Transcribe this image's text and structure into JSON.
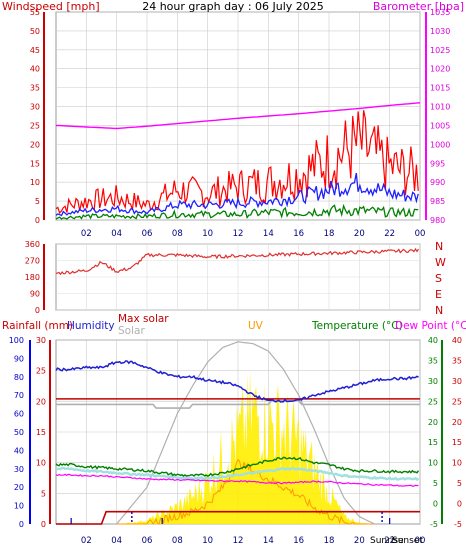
{
  "chart_data": [
    {
      "type": "line",
      "title": "24 hour graph day : 06 July 2025",
      "ylabel": "Windspeed [mph]",
      "y2label": "Barometer [hpa]",
      "x_ticks": [
        "02",
        "04",
        "06",
        "08",
        "10",
        "12",
        "14",
        "16",
        "18",
        "20",
        "22",
        "00"
      ],
      "ylim": [
        0,
        55
      ],
      "y_ticks": [
        0,
        5,
        10,
        15,
        20,
        25,
        30,
        35,
        40,
        45,
        50,
        55
      ],
      "y2lim": [
        980,
        1035
      ],
      "y2_ticks": [
        980,
        985,
        990,
        995,
        1000,
        1005,
        1010,
        1015,
        1020,
        1025,
        1030,
        1035
      ],
      "colors": {
        "gust": "#ff0000",
        "average": "#2020ff",
        "lull": "#008000",
        "barometer": "#ff00ff"
      },
      "x": [
        0,
        2,
        4,
        6,
        8,
        10,
        12,
        14,
        16,
        18,
        20,
        22,
        24
      ],
      "series": [
        {
          "key": "barometer",
          "axis": "right",
          "values": [
            1005,
            1004.6,
            1004.2,
            1004.8,
            1005.5,
            1006.2,
            1006.9,
            1007.5,
            1008.1,
            1008.8,
            1009.5,
            1010.3,
            1011
          ]
        },
        {
          "key": "gust",
          "axis": "left",
          "values": [
            3,
            5,
            6,
            4,
            8,
            7,
            9,
            10,
            12,
            16,
            20,
            14,
            12
          ]
        },
        {
          "key": "average",
          "axis": "left",
          "values": [
            1.5,
            2.5,
            3,
            2,
            4,
            4,
            4.5,
            5,
            6,
            8,
            10,
            7,
            6
          ]
        },
        {
          "key": "lull",
          "axis": "left",
          "values": [
            0.5,
            1,
            1,
            1,
            1.5,
            1.5,
            1.5,
            2,
            2,
            2.5,
            2.5,
            2,
            2
          ]
        }
      ]
    },
    {
      "type": "line",
      "x_ticks": [
        "02",
        "04",
        "06",
        "08",
        "10",
        "12",
        "14",
        "16",
        "18",
        "20",
        "22",
        "00"
      ],
      "ylim": [
        0,
        360
      ],
      "y_ticks": [
        0,
        90,
        180,
        270,
        360
      ],
      "y_tick_labels": [
        "0",
        "90",
        "180",
        "270",
        "360"
      ],
      "right_labels": [
        "N",
        "W",
        "S",
        "E",
        "N"
      ],
      "colors": {
        "direction": "#e03030"
      },
      "x": [
        0,
        2,
        3,
        4,
        5,
        6,
        8,
        10,
        12,
        14,
        16,
        18,
        20,
        22,
        24
      ],
      "series": [
        {
          "key": "direction",
          "values": [
            200,
            215,
            260,
            210,
            230,
            300,
            300,
            290,
            295,
            300,
            305,
            310,
            315,
            320,
            325
          ]
        }
      ]
    },
    {
      "type": "area",
      "labels": {
        "rainfall": "Rainfall (mm)",
        "humidity": "Humidity",
        "max_solar": "Max solar",
        "solar": "Solar",
        "uv": "UV",
        "temperature": "Temperature (°C)",
        "dew_point": "Dew Point (°C)",
        "sunrise": "Sunrise",
        "sunset": "Sunset"
      },
      "x_ticks": [
        "02",
        "04",
        "06",
        "08",
        "10",
        "12",
        "14",
        "16",
        "18",
        "20",
        "22",
        "00"
      ],
      "rain_ylim": [
        0,
        30
      ],
      "rain_ticks": [
        0,
        5,
        10,
        15,
        20,
        25,
        30
      ],
      "hum_ylim": [
        0,
        100
      ],
      "hum_ticks": [
        0,
        10,
        20,
        30,
        40,
        50,
        60,
        70,
        80,
        90,
        100
      ],
      "temp_ylim": [
        -5,
        40
      ],
      "temp_ticks": [
        -5,
        0,
        5,
        10,
        15,
        20,
        25,
        30,
        35,
        40
      ],
      "colors": {
        "rainfall": "#0000ff",
        "humidity": "#2020d0",
        "max_solar": "#c00000",
        "solar": "#b0b0b0",
        "uv": "#ff9900",
        "temperature": "#008000",
        "dew_point": "#ff00ff",
        "solar_fill": "#ffee00",
        "wet_bulb": "#a0e0e0"
      },
      "x": [
        0,
        1,
        2,
        3,
        4,
        5,
        6,
        7,
        8,
        9,
        10,
        11,
        12,
        13,
        14,
        15,
        16,
        17,
        18,
        19,
        20,
        21,
        22,
        23,
        24
      ],
      "series": [
        {
          "key": "humidity",
          "axis": "humidity",
          "values": [
            84,
            84,
            85,
            85,
            88,
            88,
            85,
            82,
            80,
            80,
            78,
            77,
            75,
            70,
            67,
            67,
            67,
            70,
            72,
            74,
            76,
            78,
            79,
            79,
            80
          ]
        },
        {
          "key": "temperature",
          "axis": "temp",
          "values": [
            9.5,
            9.5,
            9.0,
            8.8,
            8.5,
            8.3,
            8.0,
            7.5,
            7.0,
            6.8,
            7.0,
            7.5,
            8.5,
            9.5,
            10.5,
            11.3,
            11.0,
            10.0,
            9.5,
            8.5,
            8.0,
            8.0,
            7.8,
            7.8,
            7.8
          ]
        },
        {
          "key": "dew_point",
          "axis": "temp",
          "values": [
            7.0,
            7.0,
            6.8,
            6.8,
            6.5,
            6.3,
            6.0,
            5.9,
            5.8,
            5.7,
            5.6,
            5.5,
            5.5,
            5.3,
            5.1,
            5.0,
            5.2,
            5.4,
            5.3,
            5.0,
            4.8,
            4.6,
            4.5,
            4.3,
            4.4
          ]
        },
        {
          "key": "wet_bulb",
          "axis": "temp",
          "values": [
            8.5,
            8.5,
            8.0,
            7.8,
            7.5,
            7.2,
            7.0,
            6.7,
            6.4,
            6.2,
            6.3,
            6.5,
            7.0,
            7.5,
            8.0,
            8.5,
            8.5,
            8.0,
            7.5,
            6.8,
            6.5,
            6.3,
            6.1,
            6.0,
            6.0
          ]
        },
        {
          "key": "max_solar",
          "axis": "humidity",
          "values": [
            0,
            0,
            0,
            0,
            0,
            10,
            20,
            40,
            60,
            75,
            88,
            96,
            99,
            98,
            94,
            84,
            70,
            52,
            32,
            14,
            4,
            0,
            0,
            0,
            0
          ]
        },
        {
          "key": "solar_shown",
          "axis": "humidity",
          "values": [
            0,
            0,
            0,
            0,
            0,
            1,
            3,
            8,
            14,
            22,
            35,
            55,
            70,
            90,
            82,
            78,
            66,
            45,
            25,
            6,
            1,
            0,
            0,
            0,
            0
          ]
        },
        {
          "key": "uv",
          "axis": "temp",
          "values": [
            -5,
            -5,
            -5,
            -5,
            -5,
            -5,
            -5,
            -4,
            -3,
            -2,
            0,
            4,
            10,
            8,
            6,
            4,
            2,
            -1,
            -3,
            -4.5,
            -5,
            -5,
            -5,
            -5,
            -5
          ]
        },
        {
          "key": "rainfall",
          "axis": "rain",
          "values": [
            0,
            0,
            0,
            0,
            0,
            0,
            0,
            0,
            0,
            0,
            0,
            0,
            0,
            0,
            0,
            0,
            0,
            0,
            0,
            0,
            0,
            0,
            0,
            0,
            0
          ]
        }
      ],
      "rain_line": {
        "x": [
          0,
          3,
          3.3,
          24
        ],
        "values": [
          0,
          0,
          2,
          2
        ]
      },
      "max_solar_flat": 68,
      "solar_flat": 65,
      "sunrise_hour": 5,
      "sunset_hour": 21.5
    }
  ]
}
